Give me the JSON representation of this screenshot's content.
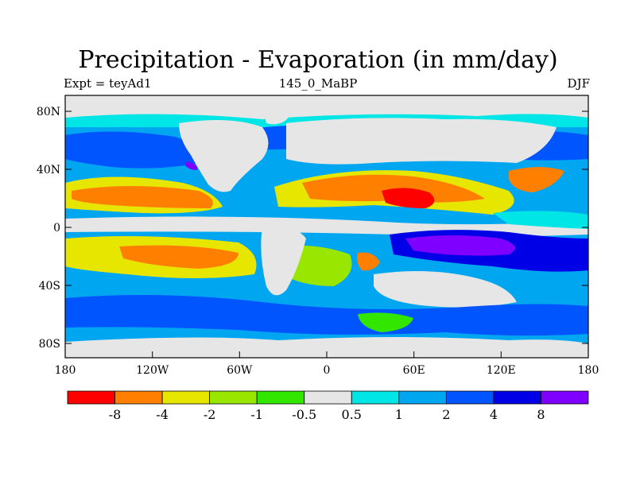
{
  "title": "Precipitation - Evaporation (in mm/day)",
  "subtitle_left": "Expt = teyAd1",
  "subtitle_center": "145_0_MaBP",
  "subtitle_right": "DJF",
  "lat_labels": [
    "80N",
    "40N",
    "0",
    "40S",
    "80S"
  ],
  "lon_labels": [
    "180",
    "120W",
    "60W",
    "0",
    "60E",
    "120E",
    "180"
  ],
  "colorbar": {
    "colors": [
      "#ff0000",
      "#ff8000",
      "#e6e600",
      "#99e600",
      "#33e600",
      "#e6e6e6",
      "#00e6e6",
      "#00a6f0",
      "#0055ff",
      "#0000e6",
      "#8000ff"
    ],
    "labels": [
      "-8",
      "-4",
      "-2",
      "-1",
      "-0.5",
      "0.5",
      "1",
      "2",
      "4",
      "8"
    ]
  },
  "map_colors": {
    "neutral": "#e6e6e6",
    "ocean_wet": "#0055ff",
    "ocean_very_wet": "#0000e6",
    "extreme_wet": "#8000ff",
    "moderate_wet": "#00a6f0",
    "light_wet": "#00e6e6",
    "dry_light": "#33e600",
    "dry_moderate": "#99e600",
    "dry": "#e6e600",
    "very_dry": "#ff8000",
    "extreme_dry": "#ff0000"
  }
}
